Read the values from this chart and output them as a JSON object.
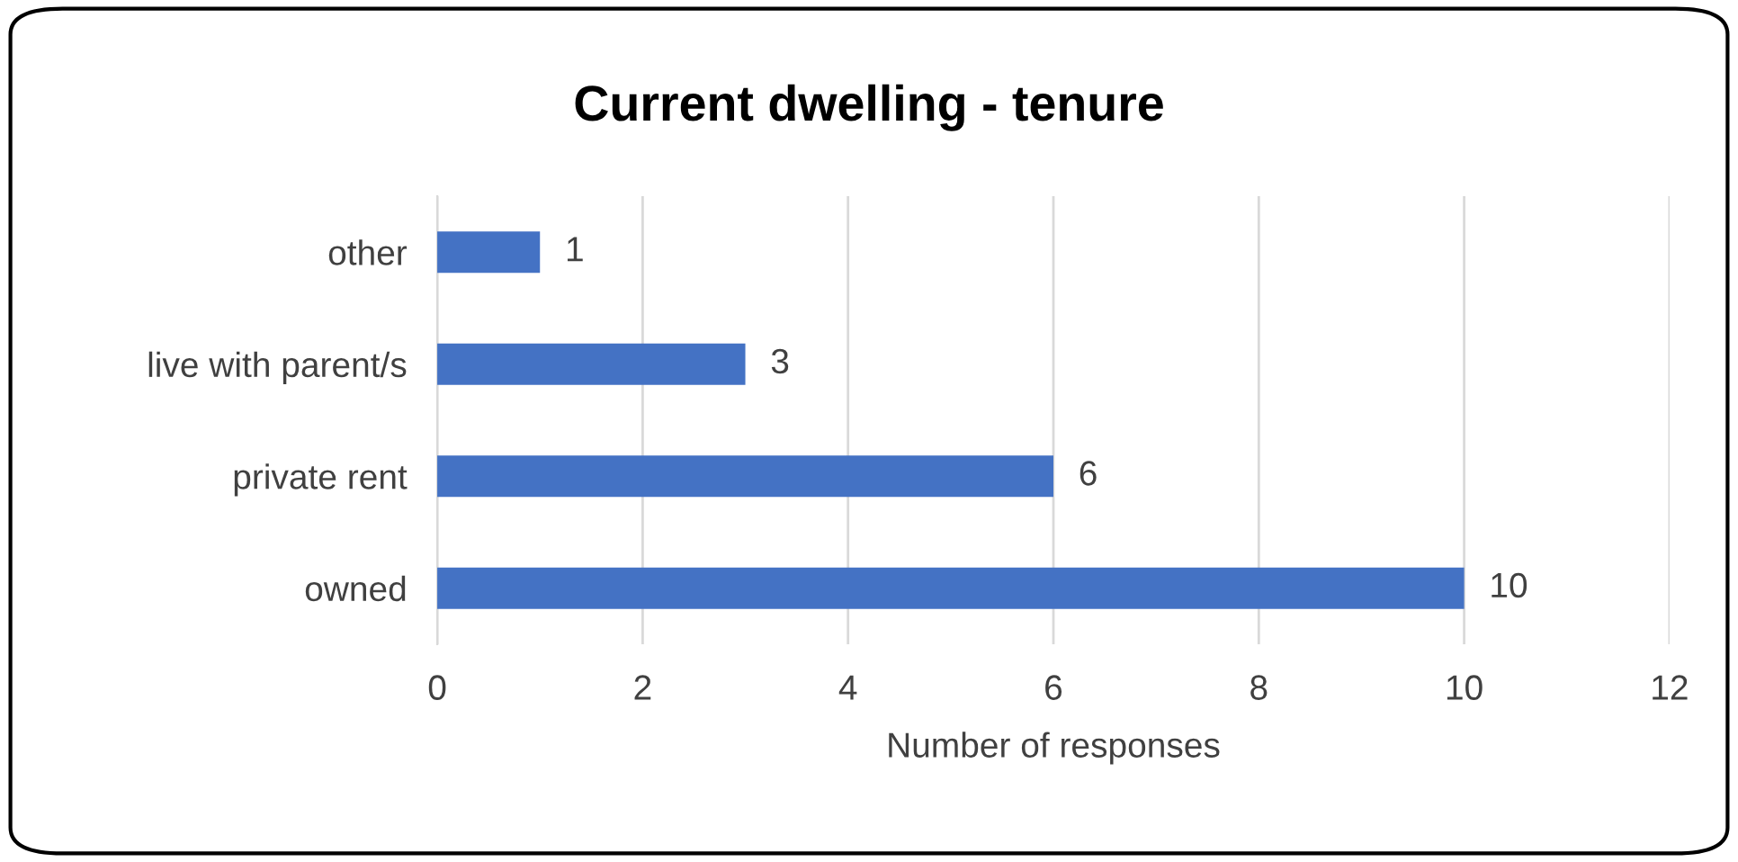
{
  "chart_data": {
    "type": "bar",
    "orientation": "horizontal",
    "title": "Current dwelling - tenure",
    "xlabel": "Number of responses",
    "categories": [
      "other",
      "live with parent/s",
      "private rent",
      "owned"
    ],
    "values": [
      1,
      3,
      6,
      10
    ],
    "color": "#4472c4",
    "data_labels": true,
    "xlim": [
      0,
      12
    ],
    "xticks": [
      0,
      2,
      4,
      6,
      8,
      10,
      12
    ],
    "grid": "x"
  }
}
